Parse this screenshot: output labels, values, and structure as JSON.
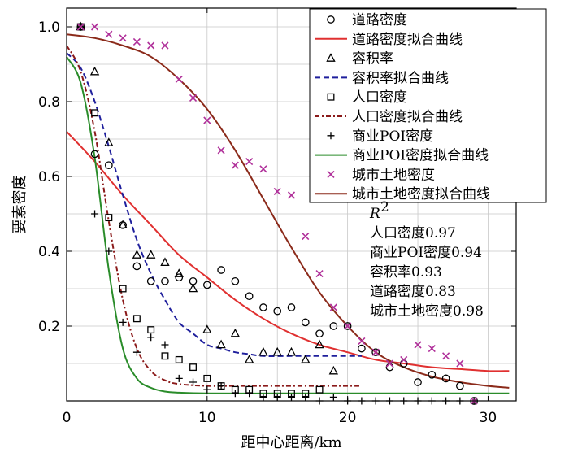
{
  "chart_data": {
    "type": "scatter",
    "xlabel": "距中心距离/km",
    "ylabel": "要素密度",
    "xlim": [
      0,
      32
    ],
    "ylim": [
      0,
      1.05
    ],
    "xticks": [
      0,
      10,
      20,
      30
    ],
    "yticks": [
      0.2,
      0.4,
      0.6,
      0.8,
      1.0
    ],
    "ytick_labels": [
      "0.2",
      "0.4",
      "0.6",
      "0.8",
      "1.0"
    ],
    "xtick_labels": [
      "0",
      "10",
      "20",
      "30"
    ],
    "grid": true,
    "legend_position": "top-right",
    "series": [
      {
        "name": "道路密度",
        "kind": "points",
        "marker": "circle",
        "color": "#000000",
        "x": [
          1,
          2,
          3,
          4,
          5,
          6,
          7,
          8,
          9,
          10,
          11,
          12,
          13,
          14,
          15,
          16,
          17,
          18,
          19,
          20,
          21,
          22,
          23,
          24,
          25,
          26,
          27,
          28,
          29
        ],
        "y": [
          1.0,
          0.66,
          0.63,
          0.47,
          0.36,
          0.32,
          0.32,
          0.33,
          0.32,
          0.31,
          0.35,
          0.32,
          0.28,
          0.25,
          0.24,
          0.25,
          0.21,
          0.18,
          0.2,
          0.2,
          0.14,
          0.13,
          0.09,
          0.1,
          0.05,
          0.07,
          0.06,
          0.04,
          0.0
        ]
      },
      {
        "name": "道路密度拟合曲线",
        "kind": "curve",
        "color": "#e03030",
        "dash": "",
        "x": [
          0,
          2,
          4,
          6,
          8,
          10,
          12,
          14,
          16,
          18,
          20,
          22,
          24,
          26,
          28,
          30,
          31.5
        ],
        "y": [
          0.72,
          0.64,
          0.55,
          0.47,
          0.39,
          0.33,
          0.27,
          0.22,
          0.18,
          0.15,
          0.13,
          0.11,
          0.1,
          0.09,
          0.085,
          0.08,
          0.08
        ]
      },
      {
        "name": "容积率",
        "kind": "points",
        "marker": "triangle",
        "color": "#000000",
        "x": [
          1,
          2,
          3,
          4,
          5,
          6,
          7,
          8,
          9,
          10,
          11,
          12,
          13,
          14,
          15,
          16,
          17,
          18,
          19
        ],
        "y": [
          1.0,
          0.88,
          0.69,
          0.47,
          0.39,
          0.39,
          0.37,
          0.34,
          0.3,
          0.19,
          0.15,
          0.18,
          0.11,
          0.13,
          0.13,
          0.13,
          0.11,
          0.15,
          0.08
        ]
      },
      {
        "name": "容积率拟合曲线",
        "kind": "curve",
        "color": "#1f1f9c",
        "dash": "7,4",
        "x": [
          0,
          1,
          2,
          3,
          4,
          5,
          6,
          7,
          8,
          9,
          10,
          11,
          12,
          13,
          14,
          16,
          18,
          20,
          21
        ],
        "y": [
          0.93,
          0.89,
          0.8,
          0.68,
          0.55,
          0.43,
          0.34,
          0.27,
          0.21,
          0.18,
          0.15,
          0.14,
          0.13,
          0.125,
          0.12,
          0.12,
          0.12,
          0.12,
          0.12
        ]
      },
      {
        "name": "人口密度",
        "kind": "points",
        "marker": "square",
        "color": "#000000",
        "x": [
          1,
          2,
          3,
          4,
          5,
          6,
          7,
          8,
          9,
          10,
          11,
          12,
          13,
          14,
          15,
          16,
          17,
          18
        ],
        "y": [
          1.0,
          0.77,
          0.49,
          0.3,
          0.22,
          0.19,
          0.12,
          0.11,
          0.09,
          0.06,
          0.04,
          0.03,
          0.03,
          0.02,
          0.02,
          0.02,
          0.02,
          0.03
        ]
      },
      {
        "name": "人口密度拟合曲线",
        "kind": "curve",
        "color": "#8b1a1a",
        "dash": "6,3,2,3",
        "x": [
          0,
          1,
          2,
          3,
          4,
          5,
          6,
          7,
          8,
          10,
          12,
          14,
          16,
          18,
          20,
          21
        ],
        "y": [
          0.95,
          0.88,
          0.72,
          0.48,
          0.27,
          0.14,
          0.08,
          0.055,
          0.045,
          0.04,
          0.04,
          0.04,
          0.04,
          0.04,
          0.04,
          0.04
        ]
      },
      {
        "name": "商业POI密度",
        "kind": "points",
        "marker": "plus",
        "color": "#000000",
        "x": [
          1,
          2,
          3,
          4,
          5,
          6,
          7,
          8,
          9,
          10,
          11,
          12,
          13,
          14,
          15,
          16,
          17,
          18,
          19,
          20,
          21,
          22,
          23,
          24,
          25,
          26,
          27,
          28,
          29
        ],
        "y": [
          1.0,
          0.5,
          0.4,
          0.21,
          0.13,
          0.17,
          0.15,
          0.06,
          0.05,
          0.03,
          0.04,
          0.02,
          0.02,
          0.01,
          0.01,
          0.01,
          0.01,
          0.0,
          0.01,
          0.0,
          0.0,
          0.0,
          0.0,
          0.0,
          0.0,
          0.0,
          0.0,
          0.0,
          0.0
        ]
      },
      {
        "name": "商业POI密度拟合曲线",
        "kind": "curve",
        "color": "#2a8c2a",
        "dash": "",
        "x": [
          0,
          1,
          2,
          3,
          4,
          5,
          6,
          7,
          8,
          10,
          15,
          20,
          25,
          31.5
        ],
        "y": [
          0.92,
          0.85,
          0.65,
          0.35,
          0.14,
          0.06,
          0.035,
          0.025,
          0.022,
          0.02,
          0.02,
          0.02,
          0.02,
          0.02
        ]
      },
      {
        "name": "城市土地密度",
        "kind": "points",
        "marker": "cross",
        "color": "#b0309a",
        "x": [
          1,
          2,
          3,
          4,
          5,
          6,
          7,
          8,
          9,
          10,
          11,
          12,
          13,
          14,
          15,
          16,
          17,
          18,
          19,
          20,
          21,
          22,
          23,
          24,
          25,
          26,
          27,
          28,
          29
        ],
        "y": [
          1.0,
          1.0,
          0.98,
          0.97,
          0.96,
          0.95,
          0.95,
          0.86,
          0.81,
          0.75,
          0.67,
          0.63,
          0.64,
          0.62,
          0.56,
          0.55,
          0.44,
          0.34,
          0.25,
          0.2,
          0.16,
          0.13,
          0.1,
          0.11,
          0.15,
          0.14,
          0.12,
          0.1,
          0.0
        ]
      },
      {
        "name": "城市土地密度拟合曲线",
        "kind": "curve",
        "color": "#8b2a1a",
        "dash": "",
        "x": [
          0,
          2,
          4,
          6,
          8,
          10,
          12,
          14,
          16,
          18,
          20,
          22,
          24,
          26,
          28,
          30,
          31.5
        ],
        "y": [
          0.98,
          0.97,
          0.95,
          0.92,
          0.86,
          0.78,
          0.67,
          0.54,
          0.41,
          0.29,
          0.2,
          0.13,
          0.09,
          0.065,
          0.05,
          0.04,
          0.035
        ]
      }
    ],
    "r2": {
      "title": "R",
      "title_sup": "2",
      "entries": [
        "人口密度0.97",
        "商业POI密度0.94",
        "容积率0.93",
        "道路密度0.83",
        "城市土地密度0.98"
      ]
    }
  }
}
